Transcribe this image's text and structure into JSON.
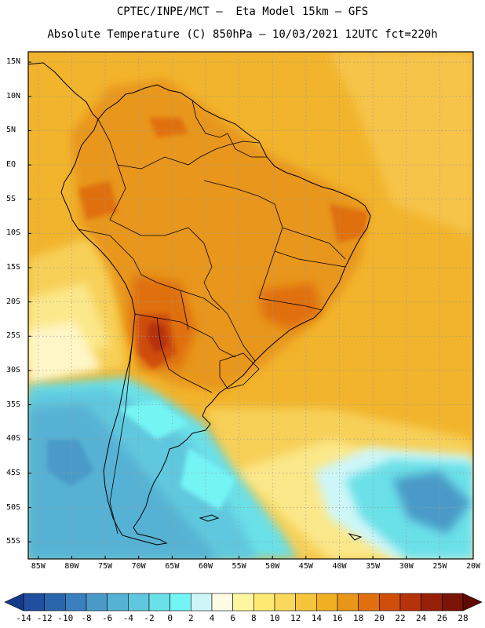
{
  "header": {
    "line1": "CPTEC/INPE/MCT –  Eta Model 15km – GFS",
    "line2": "Absolute Temperature (C) 850hPa – 10/03/2021 12UTC fct=220h"
  },
  "map": {
    "lat_labels": [
      "15N",
      "10N",
      "5N",
      "EQ",
      "5S",
      "10S",
      "15S",
      "20S",
      "25S",
      "30S",
      "35S",
      "40S",
      "45S",
      "50S",
      "55S"
    ],
    "lat_values": [
      15,
      10,
      5,
      0,
      -5,
      -10,
      -15,
      -20,
      -25,
      -30,
      -35,
      -40,
      -45,
      -50,
      -55
    ],
    "lon_labels": [
      "85W",
      "80W",
      "75W",
      "70W",
      "65W",
      "60W",
      "55W",
      "50W",
      "45W",
      "40W",
      "35W",
      "30W",
      "25W",
      "20W"
    ],
    "lon_values": [
      -85,
      -80,
      -75,
      -70,
      -65,
      -60,
      -55,
      -50,
      -45,
      -40,
      -35,
      -30,
      -25,
      -20
    ],
    "lat_range": [
      -57.5,
      16.5
    ],
    "lon_range": [
      -86.5,
      -20
    ]
  },
  "colorbar": {
    "labels": [
      "-14",
      "-12",
      "-10",
      "-8",
      "-6",
      "-4",
      "-2",
      "0",
      "2",
      "4",
      "6",
      "8",
      "10",
      "12",
      "14",
      "16",
      "18",
      "20",
      "22",
      "24",
      "26",
      "28"
    ],
    "colors": [
      "#163a8a",
      "#1f4f9e",
      "#2a66ae",
      "#3a7fbe",
      "#4a9ac8",
      "#56b2d4",
      "#60c8de",
      "#6ae0e8",
      "#74f4f4",
      "#cef6f8",
      "#fffbe4",
      "#fff7a0",
      "#fdea72",
      "#f9d85c",
      "#f5c53c",
      "#efb022",
      "#e8961a",
      "#e0700e",
      "#ce4e0a",
      "#b6320a",
      "#962008",
      "#7a1406",
      "#600a04"
    ]
  }
}
